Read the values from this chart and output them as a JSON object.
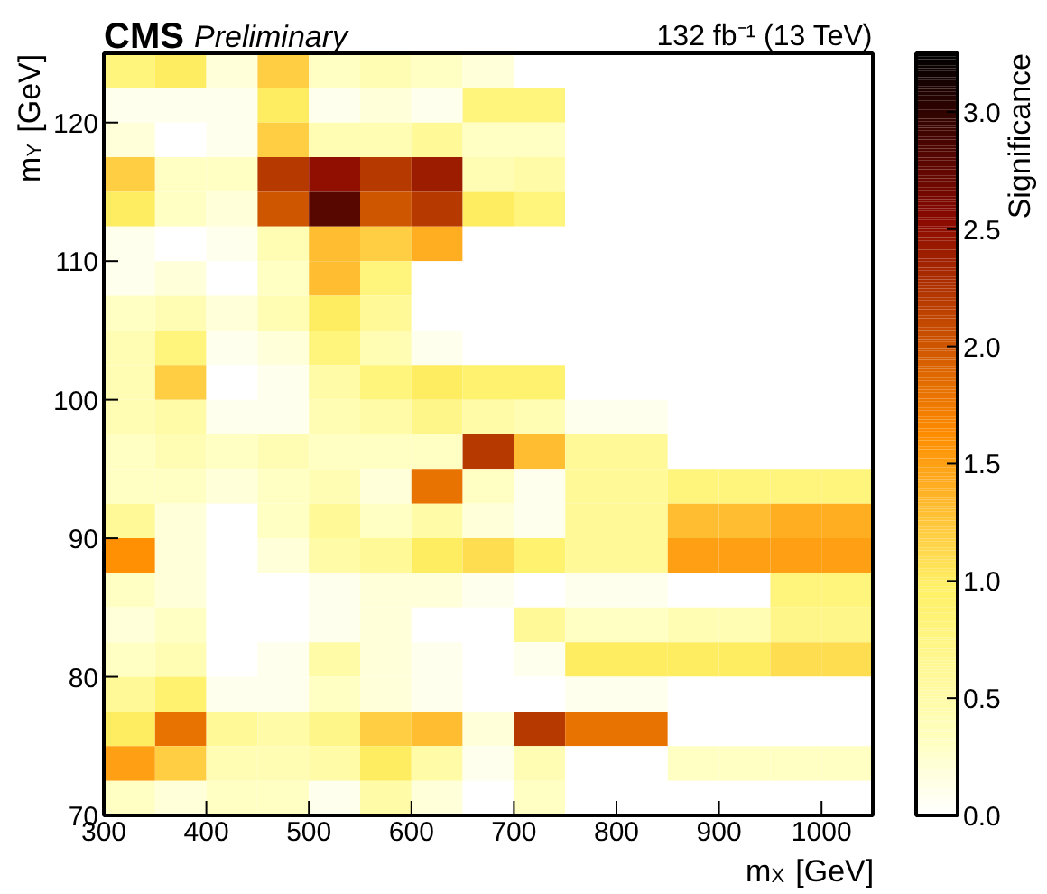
{
  "chart_data": {
    "type": "heatmap",
    "title": "CMS",
    "subtitle": "Preliminary",
    "annotations": [
      "132 fb⁻¹ (13 TeV)"
    ],
    "xlabel": "m$_{X}$ [GeV]",
    "ylabel": "m$_{Y}$ [GeV]",
    "clabel": "Significance",
    "x": [
      325,
      375,
      425,
      475,
      525,
      575,
      625,
      675,
      725,
      775,
      825,
      875,
      925,
      975,
      1025
    ],
    "y": [
      123.75,
      121.25,
      118.75,
      116.25,
      113.75,
      111.25,
      108.75,
      106.25,
      103.75,
      101.25,
      98.75,
      96.25,
      93.75,
      91.25,
      88.75,
      86.25,
      83.75,
      81.25,
      78.75,
      76.25,
      73.75,
      71.25
    ],
    "xlim": [
      300,
      1050
    ],
    "xticks": [
      300,
      400,
      500,
      600,
      700,
      800,
      900,
      1000
    ],
    "ylim": [
      70,
      125
    ],
    "yticks": [
      70,
      80,
      90,
      100,
      110,
      120
    ],
    "clim": [
      0,
      3.25
    ],
    "cticks": [
      {
        "value": 0,
        "label": "0.0"
      },
      0.5,
      {
        "value": 1,
        "label": "1.0"
      },
      1.5,
      {
        "value": 2,
        "label": "2.0"
      },
      2.5,
      {
        "value": 3,
        "label": "3.0"
      }
    ],
    "cells": [
      [
        0.8,
        1.0,
        0.2,
        1.2,
        0.3,
        0.4,
        0.3,
        0.2,
        0,
        0,
        0,
        0,
        0,
        0,
        0
      ],
      [
        0.1,
        0.1,
        0.1,
        1.0,
        0.1,
        0.2,
        0.1,
        0.8,
        0.8,
        0,
        0,
        0,
        0,
        0,
        0
      ],
      [
        0.2,
        0,
        0.1,
        1.2,
        0.4,
        0.4,
        0.6,
        0.3,
        0.3,
        0,
        0,
        0,
        0,
        0,
        0
      ],
      [
        1.2,
        0.3,
        0.3,
        2.2,
        2.5,
        2.2,
        2.4,
        0.4,
        0.5,
        0,
        0,
        0,
        0,
        0,
        0
      ],
      [
        1.0,
        0.3,
        0.2,
        2.0,
        2.8,
        2.0,
        2.2,
        1.0,
        0.8,
        0,
        0,
        0,
        0,
        0,
        0
      ],
      [
        0.1,
        0,
        0.1,
        0.4,
        1.3,
        1.2,
        1.4,
        0,
        0,
        0,
        0,
        0,
        0,
        0,
        0
      ],
      [
        0.1,
        0.2,
        0,
        0.3,
        1.3,
        0.8,
        0,
        0,
        0,
        0,
        0,
        0,
        0,
        0,
        0
      ],
      [
        0.3,
        0.4,
        0.2,
        0.4,
        1.0,
        0.6,
        0,
        0,
        0,
        0,
        0,
        0,
        0,
        0,
        0
      ],
      [
        0.4,
        0.8,
        0.1,
        0.2,
        0.8,
        0.4,
        0.1,
        0,
        0,
        0,
        0,
        0,
        0,
        0,
        0
      ],
      [
        0.4,
        1.2,
        0,
        0.1,
        0.5,
        0.8,
        1.0,
        0.9,
        0.9,
        0,
        0,
        0,
        0,
        0,
        0
      ],
      [
        0.4,
        0.5,
        0.1,
        0.1,
        0.4,
        0.5,
        0.7,
        0.5,
        0.4,
        0.1,
        0.1,
        0,
        0,
        0,
        0
      ],
      [
        0.3,
        0.4,
        0.3,
        0.4,
        0.3,
        0.3,
        0.3,
        2.2,
        1.3,
        0.6,
        0.6,
        0,
        0,
        0,
        0
      ],
      [
        0.3,
        0.3,
        0.2,
        0.3,
        0.4,
        0.2,
        1.8,
        0.3,
        0.1,
        0.6,
        0.6,
        0.8,
        0.8,
        0.8,
        0.8
      ],
      [
        0.6,
        0.2,
        0,
        0.3,
        0.6,
        0.3,
        0.5,
        0.2,
        0.1,
        0.6,
        0.6,
        1.3,
        1.3,
        1.4,
        1.4
      ],
      [
        1.6,
        0.2,
        0,
        0.2,
        0.5,
        0.6,
        1.0,
        1.1,
        0.9,
        0.6,
        0.6,
        1.5,
        1.5,
        1.5,
        1.5
      ],
      [
        0.3,
        0.2,
        0,
        0,
        0.1,
        0.2,
        0.2,
        0.1,
        0,
        0.1,
        0.1,
        0,
        0,
        0.8,
        0.8
      ],
      [
        0.2,
        0.3,
        0,
        0,
        0.1,
        0.2,
        0,
        0,
        0.6,
        0.3,
        0.3,
        0.4,
        0.4,
        0.7,
        0.7
      ],
      [
        0.3,
        0.4,
        0,
        0.1,
        0.5,
        0.2,
        0.1,
        0,
        0.1,
        1.0,
        1.0,
        1.0,
        1.0,
        1.1,
        1.1
      ],
      [
        0.6,
        0.9,
        0.1,
        0.1,
        0.3,
        0.2,
        0.1,
        0,
        0,
        0.1,
        0.1,
        0,
        0,
        0,
        0
      ],
      [
        1.0,
        1.8,
        0.6,
        0.5,
        0.7,
        1.2,
        1.3,
        0.2,
        2.2,
        1.8,
        1.8,
        0,
        0,
        0,
        0
      ],
      [
        1.5,
        1.2,
        0.4,
        0.4,
        0.5,
        1.0,
        0.5,
        0.1,
        0.4,
        0,
        0,
        0.3,
        0.3,
        0.3,
        0.3
      ],
      [
        0.3,
        0.2,
        0.3,
        0.3,
        0.1,
        0.5,
        0.2,
        0,
        0.3,
        0,
        0,
        0,
        0,
        0,
        0
      ]
    ]
  }
}
